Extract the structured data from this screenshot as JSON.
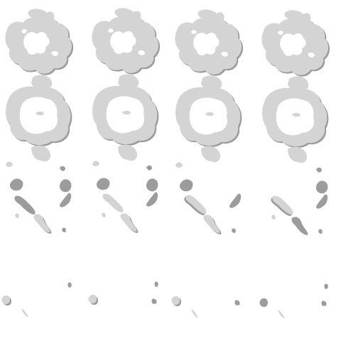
{
  "image": {
    "kind": "sprite-sheet",
    "rows": 5,
    "columns": 4,
    "frame_count": 20,
    "background": "#ffffff",
    "colors": {
      "light_fill": "#d4d4d4",
      "dark_fill": "#9c9c9c"
    }
  }
}
